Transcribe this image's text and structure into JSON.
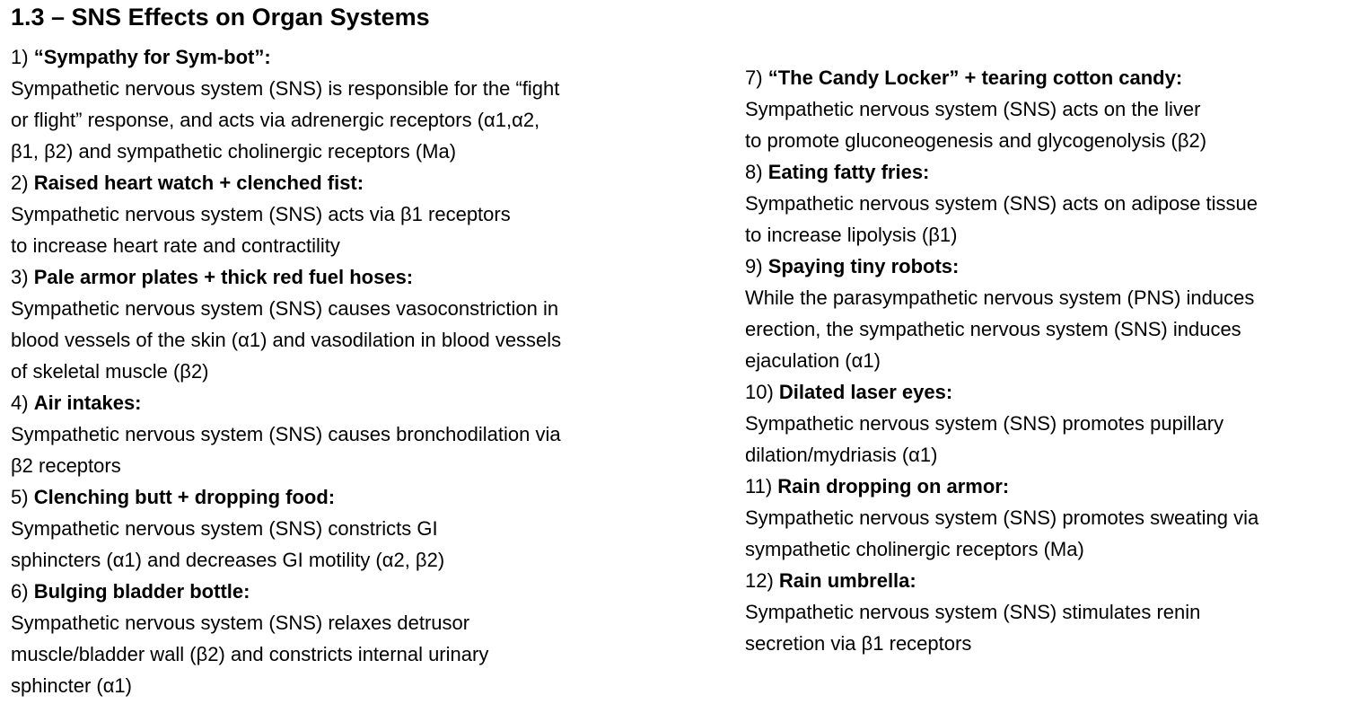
{
  "title": "1.3 – SNS Effects on Organ Systems",
  "left_items": [
    {
      "number": "1)",
      "heading": "“Sympathy for Sym-bot”:",
      "lines": [
        "Sympathetic nervous system (SNS) is responsible for the “fight",
        "or flight” response, and acts via adrenergic receptors (α1,α2,",
        "β1, β2) and sympathetic cholinergic receptors (Ma)"
      ]
    },
    {
      "number": "2)",
      "heading": "Raised heart watch + clenched fist:",
      "lines": [
        "Sympathetic nervous system (SNS) acts via β1 receptors",
        "to increase heart rate and contractility"
      ]
    },
    {
      "number": "3)",
      "heading": "Pale armor plates + thick red fuel hoses:",
      "lines": [
        "Sympathetic nervous system (SNS) causes vasoconstriction in",
        "blood vessels of the skin (α1) and vasodilation in blood vessels",
        "of skeletal muscle (β2)"
      ]
    },
    {
      "number": "4)",
      "heading": "Air intakes:",
      "lines": [
        "Sympathetic nervous system (SNS) causes bronchodilation via",
        "β2 receptors"
      ]
    },
    {
      "number": "5)",
      "heading": "Clenching butt + dropping food:",
      "lines": [
        "Sympathetic nervous system (SNS) constricts GI",
        "sphincters (α1) and decreases GI motility (α2, β2)"
      ]
    },
    {
      "number": "6)",
      "heading": "Bulging bladder bottle:",
      "lines": [
        "Sympathetic nervous system (SNS) relaxes detrusor",
        "muscle/bladder wall (β2) and constricts internal urinary",
        "sphincter (α1)"
      ]
    }
  ],
  "right_items": [
    {
      "number": "7)",
      "heading": "“The Candy Locker” + tearing cotton candy:",
      "lines": [
        "Sympathetic nervous system (SNS) acts on the liver",
        "to promote gluconeogenesis and glycogenolysis (β2)"
      ]
    },
    {
      "number": "8)",
      "heading": "Eating fatty fries:",
      "lines": [
        "Sympathetic nervous system (SNS) acts on adipose tissue",
        "to increase lipolysis (β1)"
      ]
    },
    {
      "number": "9)",
      "heading": "Spaying tiny robots:",
      "lines": [
        "While the parasympathetic nervous system (PNS) induces",
        "erection, the sympathetic nervous system (SNS) induces",
        "ejaculation (α1)"
      ]
    },
    {
      "number": "10)",
      "heading": "Dilated laser eyes:",
      "lines": [
        "Sympathetic nervous system (SNS) promotes pupillary",
        "dilation/mydriasis (α1)"
      ]
    },
    {
      "number": "11)",
      "heading": "Rain dropping on armor:",
      "lines": [
        "Sympathetic nervous system (SNS) promotes sweating via",
        "sympathetic cholinergic receptors (Ma)"
      ]
    },
    {
      "number": "12)",
      "heading": "Rain umbrella:",
      "lines": [
        "Sympathetic nervous system (SNS) stimulates renin",
        "secretion via β1 receptors"
      ]
    }
  ]
}
